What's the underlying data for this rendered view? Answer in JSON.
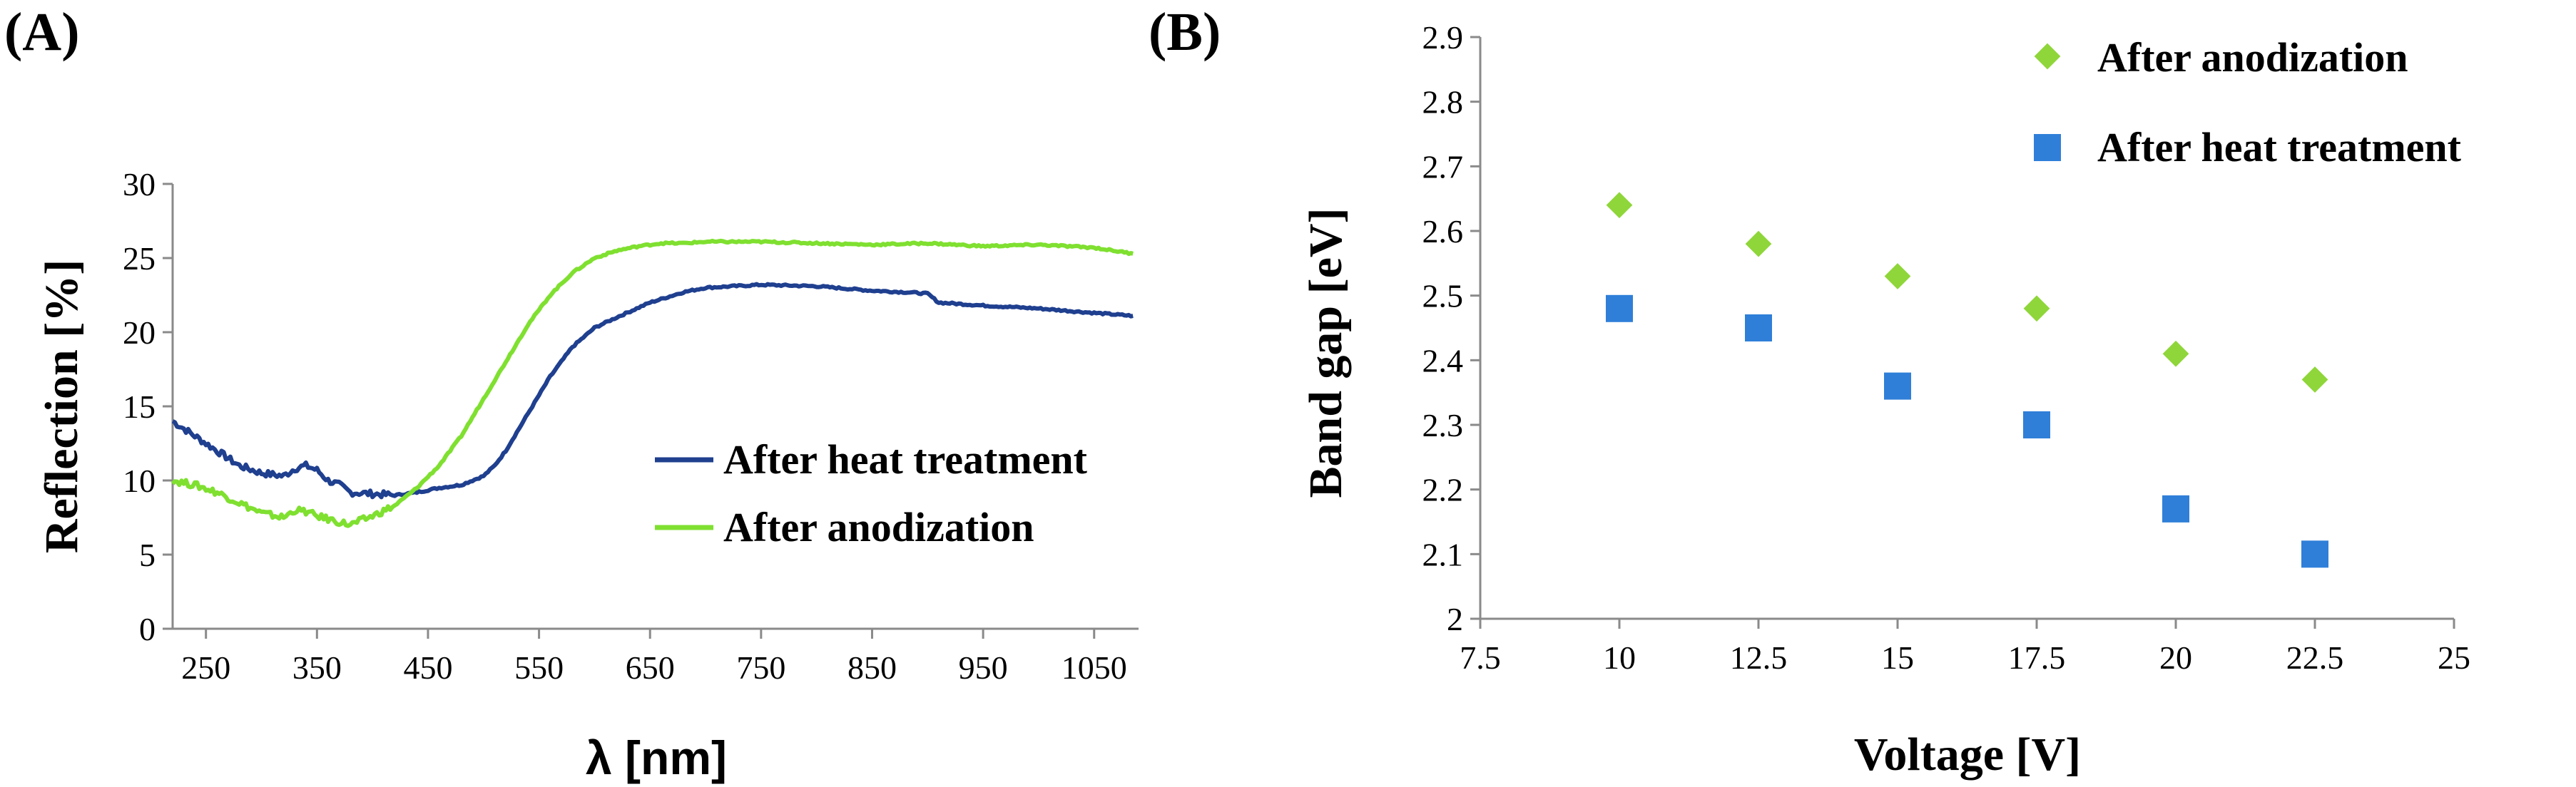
{
  "chart_data": [
    {
      "panel_label": "(A)",
      "type": "line",
      "xlabel": "λ [nm]",
      "ylabel": "Reflection [%]",
      "xlim": [
        220,
        1090
      ],
      "ylim": [
        0,
        30
      ],
      "x_ticks": [
        "250",
        "350",
        "450",
        "550",
        "650",
        "750",
        "850",
        "950",
        "1050"
      ],
      "x_tick_values": [
        250,
        350,
        450,
        550,
        650,
        750,
        850,
        950,
        1050
      ],
      "y_ticks": [
        "0",
        "5",
        "10",
        "15",
        "20",
        "25",
        "30"
      ],
      "y_tick_values": [
        0,
        5,
        10,
        15,
        20,
        25,
        30
      ],
      "grid": false,
      "legend_position": "center-right",
      "series": [
        {
          "name": "After heat treatment",
          "color": "#1f3f8f",
          "x": [
            220,
            240,
            260,
            280,
            300,
            320,
            330,
            340,
            350,
            360,
            370,
            380,
            400,
            420,
            440,
            460,
            480,
            500,
            510,
            520,
            540,
            560,
            580,
            600,
            620,
            650,
            680,
            700,
            750,
            800,
            850,
            880,
            900,
            910,
            950,
            1000,
            1050,
            1085
          ],
          "y": [
            14.0,
            13.0,
            12.0,
            11.0,
            10.5,
            10.3,
            10.8,
            11.0,
            10.7,
            10.0,
            9.7,
            9.2,
            9.1,
            9.0,
            9.2,
            9.5,
            9.7,
            10.3,
            11.0,
            12.0,
            14.5,
            17.0,
            19.0,
            20.3,
            21.0,
            22.0,
            22.7,
            23.0,
            23.2,
            23.1,
            22.8,
            22.7,
            22.6,
            22.0,
            21.8,
            21.6,
            21.3,
            21.1
          ]
        },
        {
          "name": "After anodization",
          "color": "#7fe030",
          "x": [
            220,
            240,
            260,
            280,
            300,
            320,
            330,
            340,
            350,
            360,
            370,
            380,
            400,
            420,
            440,
            460,
            480,
            500,
            520,
            540,
            560,
            580,
            600,
            620,
            640,
            660,
            680,
            700,
            750,
            800,
            850,
            900,
            950,
            1000,
            1050,
            1085
          ],
          "y": [
            10.0,
            9.7,
            9.2,
            8.5,
            7.8,
            7.5,
            8.0,
            7.9,
            7.6,
            7.4,
            7.2,
            7.0,
            7.6,
            8.3,
            9.5,
            11.0,
            13.0,
            15.5,
            18.0,
            20.5,
            22.5,
            24.0,
            25.0,
            25.5,
            25.8,
            26.0,
            26.0,
            26.1,
            26.1,
            26.0,
            25.9,
            26.0,
            25.8,
            25.9,
            25.7,
            25.3
          ]
        }
      ]
    },
    {
      "panel_label": "(B)",
      "type": "scatter",
      "xlabel": "Voltage [V]",
      "ylabel": "Band gap [eV]",
      "xlim": [
        7.5,
        25
      ],
      "ylim": [
        2,
        2.9
      ],
      "x_ticks": [
        "7.5",
        "10",
        "12.5",
        "15",
        "17.5",
        "20",
        "22.5",
        "25"
      ],
      "x_tick_values": [
        7.5,
        10,
        12.5,
        15,
        17.5,
        20,
        22.5,
        25
      ],
      "y_ticks": [
        "2",
        "2.1",
        "2.2",
        "2.3",
        "2.4",
        "2.5",
        "2.6",
        "2.7",
        "2.8",
        "2.9"
      ],
      "y_tick_values": [
        2,
        2.1,
        2.2,
        2.3,
        2.4,
        2.5,
        2.6,
        2.7,
        2.8,
        2.9
      ],
      "grid": false,
      "legend_position": "top-right",
      "series": [
        {
          "name": "After anodization",
          "marker": "diamond",
          "color": "#8fd63a",
          "x": [
            10,
            12.5,
            15,
            17.5,
            20,
            22.5
          ],
          "y": [
            2.64,
            2.58,
            2.53,
            2.48,
            2.41,
            2.37
          ]
        },
        {
          "name": "After heat treatment",
          "marker": "square",
          "color": "#2f7fd8",
          "x": [
            10,
            12.5,
            15,
            17.5,
            20,
            22.5
          ],
          "y": [
            2.48,
            2.45,
            2.36,
            2.3,
            2.17,
            2.1
          ]
        }
      ]
    }
  ]
}
